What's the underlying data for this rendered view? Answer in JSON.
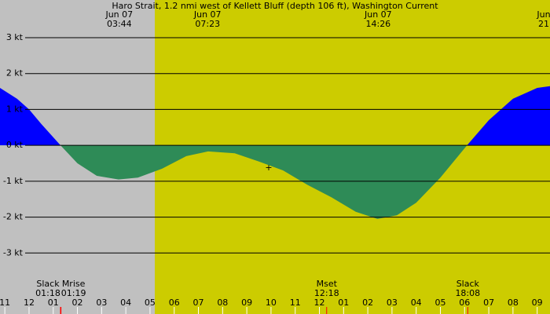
{
  "chart_data": {
    "type": "area",
    "title": "Haro Strait, 1.2 nmi west of Kellett Bluff (depth 106 ft), Washington Current",
    "x": [
      -1.2,
      -0.5,
      0,
      0.5,
      1.3,
      2,
      2.8,
      3.7,
      4.5,
      5.5,
      6.5,
      7.4,
      8.5,
      9.5,
      10.5,
      11.5,
      12.5,
      13.5,
      14.4,
      15.2,
      16,
      17,
      18.1,
      19,
      20,
      21,
      21.53
    ],
    "series": [
      {
        "name": "Current",
        "values": [
          1.6,
          1.3,
          1.0,
          0.6,
          0,
          -0.5,
          -0.85,
          -0.95,
          -0.9,
          -0.65,
          -0.3,
          -0.17,
          -0.22,
          -0.45,
          -0.7,
          -1.1,
          -1.45,
          -1.85,
          -2.05,
          -1.95,
          -1.6,
          -0.9,
          0,
          0.7,
          1.3,
          1.6,
          1.65
        ],
        "color": "#0000ff",
        "negative_color": "#2e8b57"
      }
    ],
    "xlim": [
      -1.2,
      21.53
    ],
    "ylim": [
      -4.7,
      4.05
    ],
    "yticks": [
      {
        "value": 3,
        "label": "3 kt"
      },
      {
        "value": 2,
        "label": "2 kt"
      },
      {
        "value": 1,
        "label": "1 kt"
      },
      {
        "value": 0,
        "label": "0 kt"
      },
      {
        "value": -1,
        "label": "-1 kt"
      },
      {
        "value": -2,
        "label": "-2 kt"
      },
      {
        "value": -3,
        "label": "-3 kt"
      }
    ],
    "xticks": [
      {
        "value": -1,
        "label": "11"
      },
      {
        "value": 0,
        "label": "12"
      },
      {
        "value": 1,
        "label": "01"
      },
      {
        "value": 2,
        "label": "02"
      },
      {
        "value": 3,
        "label": "03"
      },
      {
        "value": 4,
        "label": "04"
      },
      {
        "value": 5,
        "label": "05"
      },
      {
        "value": 6,
        "label": "06"
      },
      {
        "value": 7,
        "label": "07"
      },
      {
        "value": 8,
        "label": "08"
      },
      {
        "value": 9,
        "label": "09"
      },
      {
        "value": 10,
        "label": "10"
      },
      {
        "value": 11,
        "label": "11"
      },
      {
        "value": 12,
        "label": "12"
      },
      {
        "value": 13,
        "label": "01"
      },
      {
        "value": 14,
        "label": "02"
      },
      {
        "value": 15,
        "label": "03"
      },
      {
        "value": 16,
        "label": "04"
      },
      {
        "value": 17,
        "label": "05"
      },
      {
        "value": 18,
        "label": "06"
      },
      {
        "value": 19,
        "label": "07"
      },
      {
        "value": 20,
        "label": "08"
      },
      {
        "value": 21,
        "label": "09"
      }
    ],
    "top_labels": [
      {
        "x": 3.73,
        "date": "Jun 07",
        "time": "03:44"
      },
      {
        "x": 7.38,
        "date": "Jun 07",
        "time": "07:23"
      },
      {
        "x": 14.43,
        "date": "Jun 07",
        "time": "14:26"
      },
      {
        "x": 21.27,
        "date": "Jun",
        "time": "21"
      }
    ],
    "events": [
      {
        "x": 1.3,
        "name": "Slack",
        "time": "01:18"
      },
      {
        "x": 1.32,
        "name": "Mrise",
        "time": "01:19"
      },
      {
        "x": 12.3,
        "name": "Mset",
        "time": "12:18"
      },
      {
        "x": 18.13,
        "name": "Slack",
        "time": "18:08"
      }
    ],
    "grid": true
  }
}
